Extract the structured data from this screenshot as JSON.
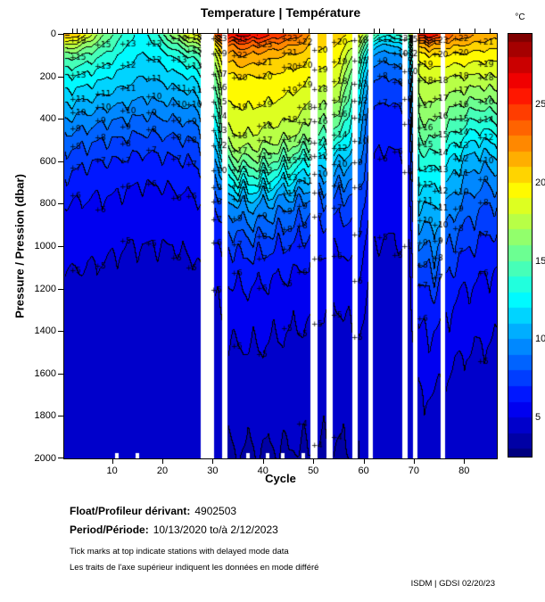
{
  "title": "Temperature | Température",
  "footer": {
    "float_label": "Float/Profileur dérivant:",
    "float_value": "4902503",
    "period_label": "Period/Période:",
    "period_value": "10/13/2020  to/à  2/12/2023",
    "note_en": "Tick marks at top indicate stations with delayed mode data",
    "note_fr": "Les traits de l'axe supérieur indiquent les données en mode différé",
    "credit": "ISDM | GDSI  02/20/23"
  },
  "colors": {
    "contour_line": "#000000",
    "axis": "#000000",
    "background": "#ffffff",
    "missing_data": "#ffffff"
  },
  "chart_data": {
    "type": "heatmap",
    "subtype": "filled-contour-section",
    "title": "Temperature | Température",
    "xlabel": "Cycle",
    "ylabel": "Pressure / Pression (dbar)",
    "colorbar_label": "°C",
    "colormap": "jet",
    "grid_on": false,
    "x_ticks": [
      10,
      20,
      30,
      40,
      50,
      60,
      70,
      80
    ],
    "y_ticks": [
      0,
      200,
      400,
      600,
      800,
      1000,
      1200,
      1400,
      1600,
      1800,
      2000
    ],
    "colorbar_ticks": [
      5,
      10,
      15,
      20,
      25
    ],
    "xlim": [
      0.5,
      86.5
    ],
    "ylim": [
      0,
      2000
    ],
    "y_axis_reversed": true,
    "clim": [
      2.5,
      29.5
    ],
    "contour_interval_degC": 1,
    "contour_label_levels": [
      4,
      5,
      6,
      7,
      8,
      9,
      10,
      11,
      12,
      13,
      14,
      15,
      16,
      17,
      18,
      19,
      20,
      21,
      22,
      23,
      25,
      26
    ],
    "label_cycles": [
      3,
      8,
      13,
      18,
      23,
      26,
      31,
      35,
      40,
      45,
      48,
      51,
      55,
      59,
      64,
      67,
      69,
      72,
      75,
      79,
      84
    ],
    "missing_cycles": [
      28,
      29,
      30,
      32,
      50,
      53,
      58,
      61,
      68,
      70,
      76
    ],
    "missing_cycle_ranges": [
      [
        27.7,
        30.3
      ],
      [
        31.9,
        32.9
      ],
      [
        49.4,
        50.9
      ],
      [
        52.7,
        53.9
      ],
      [
        57.7,
        58.9
      ],
      [
        60.9,
        61.9
      ],
      [
        67.7,
        68.8
      ],
      [
        69.8,
        70.7
      ],
      [
        75.4,
        76.3
      ]
    ],
    "delayed_mode_cycles": [
      2,
      3,
      4,
      5,
      6,
      7,
      8,
      9,
      10,
      11,
      12,
      13,
      14,
      15,
      16,
      17,
      18,
      19,
      20,
      21,
      22,
      23,
      24,
      25,
      26,
      27,
      31,
      33,
      34,
      35,
      41,
      44,
      47,
      49,
      62,
      63,
      66,
      71,
      72,
      79,
      82,
      85
    ],
    "bottom_gap_cycles": [
      11,
      15,
      37,
      41,
      44,
      48
    ],
    "grid": {
      "pressures_dbar": [
        0,
        50,
        100,
        200,
        300,
        400,
        500,
        600,
        800,
        1000,
        1200,
        1500,
        2000
      ],
      "cycles": [
        1,
        4,
        7,
        10,
        13,
        16,
        19,
        22,
        25,
        27,
        31,
        33,
        36,
        39,
        42,
        45,
        48,
        51,
        55,
        59,
        62,
        65,
        67,
        69,
        71,
        74,
        77,
        80,
        83,
        86
      ],
      "temperature_degC": [
        [
          21.5,
          18.0,
          15.5,
          13.0,
          11.5,
          10.0,
          8.5,
          7.5,
          6.0,
          5.3,
          4.8,
          4.4,
          4.0
        ],
        [
          20.0,
          17.0,
          15.0,
          12.8,
          11.2,
          9.6,
          8.4,
          7.2,
          5.9,
          5.2,
          4.8,
          4.4,
          4.0
        ],
        [
          17.0,
          15.5,
          14.3,
          12.4,
          11.0,
          9.4,
          8.1,
          7.0,
          5.8,
          5.2,
          4.7,
          4.4,
          4.0
        ],
        [
          15.0,
          14.3,
          13.4,
          11.9,
          10.6,
          9.1,
          8.0,
          7.0,
          5.8,
          5.1,
          4.7,
          4.3,
          4.0
        ],
        [
          13.5,
          13.0,
          12.5,
          11.4,
          10.4,
          9.0,
          7.8,
          6.8,
          5.6,
          5.0,
          4.6,
          4.3,
          4.0
        ],
        [
          12.5,
          12.2,
          11.9,
          11.0,
          10.0,
          8.8,
          7.6,
          6.6,
          5.5,
          5.0,
          4.6,
          4.3,
          4.0
        ],
        [
          14.0,
          13.1,
          12.3,
          11.2,
          10.2,
          8.9,
          7.7,
          6.7,
          5.5,
          5.0,
          4.6,
          4.3,
          4.0
        ],
        [
          16.5,
          14.6,
          13.1,
          11.6,
          10.3,
          9.0,
          7.8,
          6.8,
          5.6,
          5.0,
          4.6,
          4.3,
          4.0
        ],
        [
          18.5,
          16.0,
          14.0,
          12.0,
          10.6,
          9.2,
          8.0,
          7.0,
          5.7,
          5.1,
          4.7,
          4.3,
          4.0
        ],
        [
          19.5,
          16.8,
          14.6,
          12.4,
          10.9,
          9.4,
          8.1,
          7.1,
          5.8,
          5.1,
          4.7,
          4.4,
          4.0
        ],
        [
          24.5,
          20.5,
          18.5,
          16.5,
          15.0,
          13.5,
          12.0,
          10.0,
          7.2,
          5.9,
          5.1,
          4.6,
          4.0
        ],
        [
          26.0,
          23.0,
          21.5,
          19.8,
          19.2,
          18.5,
          17.5,
          15.0,
          9.5,
          7.0,
          5.8,
          4.8,
          3.9
        ],
        [
          26.5,
          23.6,
          22.0,
          20.0,
          19.3,
          18.6,
          17.8,
          15.6,
          10.2,
          7.3,
          6.0,
          4.9,
          3.9
        ],
        [
          26.0,
          23.2,
          21.6,
          20.0,
          19.3,
          18.5,
          17.6,
          15.6,
          10.2,
          7.3,
          5.9,
          4.9,
          3.9
        ],
        [
          25.0,
          22.7,
          21.2,
          19.8,
          19.1,
          18.3,
          17.2,
          14.8,
          9.7,
          7.1,
          5.7,
          4.8,
          3.9
        ],
        [
          24.0,
          22.2,
          20.9,
          19.6,
          18.9,
          18.1,
          16.8,
          14.2,
          9.2,
          6.9,
          5.6,
          4.7,
          3.9
        ],
        [
          23.0,
          21.7,
          20.6,
          19.4,
          18.6,
          17.7,
          16.2,
          13.4,
          8.7,
          6.6,
          5.4,
          4.7,
          3.9
        ],
        [
          21.0,
          20.3,
          19.7,
          18.7,
          17.6,
          16.2,
          14.6,
          11.8,
          7.9,
          6.2,
          5.3,
          4.6,
          3.9
        ],
        [
          20.5,
          19.9,
          19.4,
          18.3,
          17.2,
          15.7,
          13.8,
          10.9,
          7.4,
          6.0,
          5.2,
          4.5,
          3.9
        ],
        [
          19.5,
          17.5,
          15.8,
          13.7,
          12.4,
          11.2,
          10.4,
          9.5,
          7.6,
          6.6,
          5.6,
          4.8,
          4.0
        ],
        [
          15.0,
          11.5,
          9.8,
          8.2,
          7.3,
          6.7,
          6.2,
          5.9,
          5.4,
          5.0,
          4.7,
          4.4,
          4.0
        ],
        [
          13.0,
          10.8,
          9.4,
          8.0,
          7.1,
          6.5,
          6.1,
          5.8,
          5.3,
          4.9,
          4.6,
          4.3,
          4.0
        ],
        [
          14.5,
          11.5,
          9.9,
          8.3,
          7.3,
          6.7,
          6.2,
          5.9,
          5.4,
          5.0,
          4.6,
          4.3,
          4.0
        ],
        [
          16.0,
          13.0,
          11.0,
          9.0,
          7.8,
          7.0,
          6.5,
          6.1,
          5.5,
          5.0,
          4.7,
          4.4,
          4.0
        ],
        [
          25.5,
          21.5,
          19.5,
          18.0,
          17.0,
          16.0,
          14.8,
          13.2,
          11.0,
          9.0,
          7.0,
          5.5,
          4.2
        ],
        [
          26.0,
          22.0,
          20.0,
          18.4,
          17.3,
          16.2,
          15.0,
          13.5,
          11.2,
          9.2,
          7.1,
          5.5,
          4.2
        ],
        [
          23.5,
          21.3,
          19.8,
          18.0,
          16.8,
          15.4,
          13.8,
          12.0,
          9.7,
          7.8,
          6.4,
          5.2,
          4.1
        ],
        [
          22.5,
          21.0,
          19.7,
          18.0,
          16.4,
          14.6,
          12.6,
          10.8,
          8.8,
          7.2,
          6.0,
          5.0,
          4.1
        ],
        [
          22.0,
          20.6,
          19.5,
          17.8,
          16.0,
          13.9,
          11.9,
          10.2,
          8.2,
          6.8,
          5.8,
          4.9,
          4.1
        ],
        [
          21.5,
          20.4,
          19.4,
          18.0,
          16.4,
          14.4,
          12.4,
          10.6,
          8.0,
          6.5,
          5.6,
          4.8,
          4.1
        ]
      ]
    }
  }
}
